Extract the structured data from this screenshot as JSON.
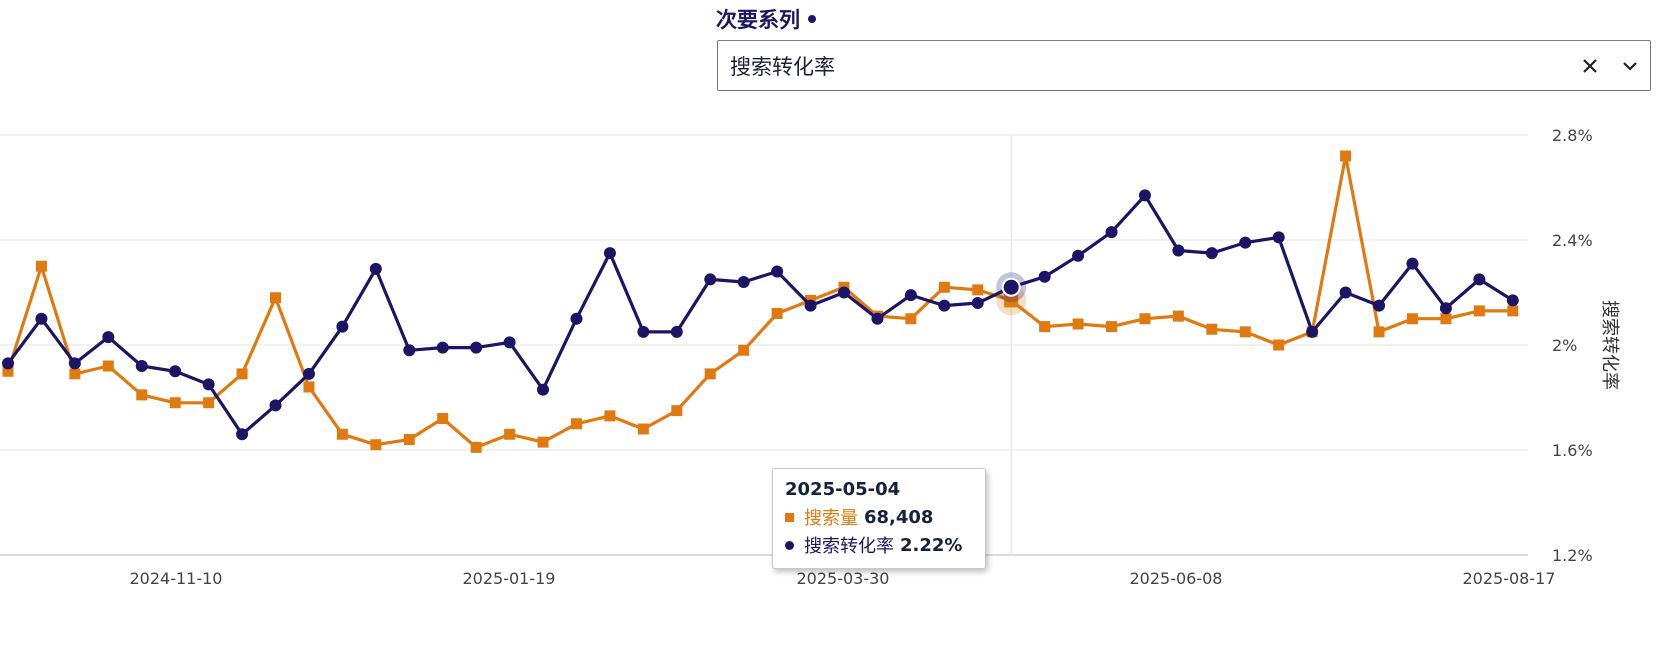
{
  "selector": {
    "label": "次要系列",
    "value": "搜索转化率",
    "clear_icon": "close-icon",
    "expand_icon": "chevron-down-icon"
  },
  "tooltip": {
    "date": "2025-05-04",
    "rows": [
      {
        "name": "搜索量",
        "value": "68,408"
      },
      {
        "name": "搜索转化率",
        "value": "2.22%"
      }
    ]
  },
  "chart_data": {
    "type": "line",
    "x_tick_labels": [
      "2024-11-10",
      "2025-01-19",
      "2025-03-30",
      "2025-06-08",
      "2025-08-17"
    ],
    "y_right": {
      "title": "搜索转化率",
      "ticks": [
        "2.8%",
        "2.4%",
        "2%",
        "1.6%",
        "1.2%"
      ],
      "range": [
        1.2,
        2.8
      ]
    },
    "grid": true,
    "highlight_index": 30,
    "colors": {
      "search_volume": "#e07a10",
      "conversion_rate": "#1c1565"
    },
    "series": [
      {
        "name": "搜索量",
        "marker": "square",
        "values_on_right_scale": [
          1.9,
          2.3,
          1.89,
          1.92,
          1.81,
          1.78,
          1.78,
          1.89,
          2.18,
          1.84,
          1.66,
          1.62,
          1.64,
          1.72,
          1.61,
          1.66,
          1.63,
          1.7,
          1.73,
          1.68,
          1.75,
          1.89,
          1.98,
          2.12,
          2.17,
          2.22,
          2.11,
          2.1,
          2.22,
          2.21,
          2.17,
          2.07,
          2.08,
          2.07,
          2.1,
          2.11,
          2.06,
          2.05,
          2.0,
          2.05,
          2.72,
          2.05,
          2.1,
          2.1,
          2.13,
          2.13
        ]
      },
      {
        "name": "搜索转化率",
        "marker": "circle",
        "values": [
          1.93,
          2.1,
          1.93,
          2.03,
          1.92,
          1.9,
          1.85,
          1.66,
          1.77,
          1.89,
          2.07,
          2.29,
          1.98,
          1.99,
          1.99,
          2.01,
          1.83,
          2.1,
          2.35,
          2.05,
          2.05,
          2.25,
          2.24,
          2.28,
          2.15,
          2.2,
          2.1,
          2.19,
          2.15,
          2.16,
          2.22,
          2.26,
          2.34,
          2.43,
          2.57,
          2.36,
          2.35,
          2.39,
          2.41,
          2.05,
          2.2,
          2.15,
          2.31,
          2.14,
          2.25,
          2.17
        ]
      }
    ]
  }
}
